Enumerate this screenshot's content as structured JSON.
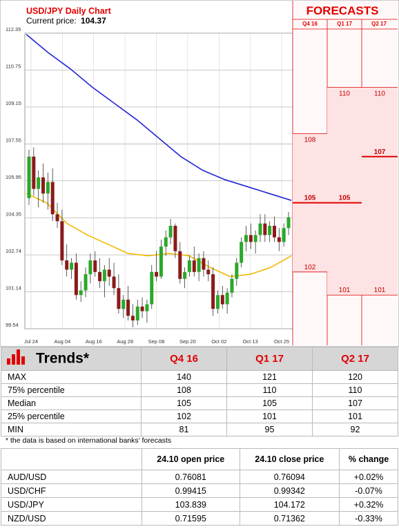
{
  "chart": {
    "title": "USD/JPY Daily Chart",
    "price_label": "Current price:",
    "price_value": "104.37"
  },
  "forecast_panel": {
    "title": "FORECASTS",
    "columns": [
      "Q4 16",
      "Q1 17",
      "Q2 17"
    ]
  },
  "chart_data": {
    "type": "candlestick",
    "title": "USD/JPY Daily Chart",
    "y_ticks": [
      "112.35",
      "110.75",
      "109.15",
      "107.55",
      "105.95",
      "104.35",
      "102.74",
      "101.14",
      "99.54"
    ],
    "ylim": [
      99.54,
      112.35
    ],
    "x_ticks": [
      "Jul 24",
      "Aug 04",
      "Aug 16",
      "Aug 28",
      "Sep 08",
      "Sep 20",
      "Oct 02",
      "Oct 13",
      "Oct 25"
    ],
    "grid": true,
    "candles": [
      [
        105.2,
        107.3,
        104.9,
        107.0
      ],
      [
        107.0,
        107.4,
        105.3,
        105.6
      ],
      [
        105.6,
        106.4,
        104.8,
        106.1
      ],
      [
        106.1,
        106.7,
        105.0,
        105.4
      ],
      [
        105.4,
        106.3,
        104.7,
        105.9
      ],
      [
        105.9,
        106.5,
        104.2,
        104.5
      ],
      [
        104.5,
        105.0,
        103.9,
        104.2
      ],
      [
        104.2,
        104.7,
        102.3,
        102.5
      ],
      [
        102.5,
        103.2,
        101.8,
        102.1
      ],
      [
        102.1,
        102.6,
        101.7,
        102.4
      ],
      [
        102.4,
        102.8,
        100.8,
        101.0
      ],
      [
        101.0,
        101.6,
        100.7,
        101.2
      ],
      [
        101.2,
        102.2,
        100.9,
        101.9
      ],
      [
        101.9,
        102.8,
        101.5,
        102.5
      ],
      [
        102.5,
        102.9,
        101.8,
        102.0
      ],
      [
        102.0,
        102.6,
        101.3,
        101.6
      ],
      [
        101.6,
        102.3,
        100.9,
        102.1
      ],
      [
        102.1,
        102.6,
        101.4,
        101.8
      ],
      [
        101.8,
        102.4,
        101.0,
        101.3
      ],
      [
        101.3,
        101.9,
        100.2,
        100.4
      ],
      [
        100.4,
        101.0,
        100.0,
        100.8
      ],
      [
        100.8,
        101.4,
        99.9,
        100.1
      ],
      [
        100.1,
        100.6,
        99.6,
        99.9
      ],
      [
        99.9,
        100.8,
        99.7,
        100.5
      ],
      [
        100.5,
        100.9,
        100.0,
        100.3
      ],
      [
        100.3,
        100.8,
        99.8,
        100.6
      ],
      [
        100.6,
        102.3,
        100.4,
        102.0
      ],
      [
        102.0,
        102.9,
        101.6,
        101.8
      ],
      [
        101.8,
        103.4,
        101.7,
        103.1
      ],
      [
        103.1,
        103.8,
        102.7,
        103.5
      ],
      [
        103.5,
        104.3,
        103.2,
        104.0
      ],
      [
        104.0,
        104.1,
        102.6,
        102.9
      ],
      [
        102.9,
        103.3,
        101.5,
        101.7
      ],
      [
        101.7,
        102.2,
        101.3,
        102.0
      ],
      [
        102.0,
        102.7,
        101.8,
        102.5
      ],
      [
        102.5,
        103.1,
        101.8,
        102.0
      ],
      [
        102.0,
        102.8,
        101.6,
        102.6
      ],
      [
        102.6,
        102.9,
        101.8,
        102.1
      ],
      [
        102.1,
        102.5,
        101.6,
        101.9
      ],
      [
        101.9,
        102.2,
        100.1,
        100.4
      ],
      [
        100.4,
        101.2,
        100.2,
        101.0
      ],
      [
        101.0,
        101.4,
        100.4,
        100.6
      ],
      [
        100.6,
        101.3,
        100.2,
        101.1
      ],
      [
        101.1,
        101.9,
        100.9,
        101.7
      ],
      [
        101.7,
        102.6,
        101.4,
        102.4
      ],
      [
        102.4,
        103.5,
        102.2,
        103.3
      ],
      [
        103.3,
        104.0,
        102.9,
        103.6
      ],
      [
        103.6,
        104.1,
        103.0,
        103.3
      ],
      [
        103.3,
        103.8,
        102.8,
        103.6
      ],
      [
        103.6,
        104.5,
        103.3,
        104.1
      ],
      [
        104.1,
        104.5,
        103.3,
        103.6
      ],
      [
        103.6,
        104.2,
        103.3,
        104.0
      ],
      [
        104.0,
        104.4,
        103.3,
        103.5
      ],
      [
        103.5,
        103.9,
        102.9,
        103.3
      ],
      [
        103.3,
        104.1,
        103.1,
        103.9
      ],
      [
        103.9,
        104.6,
        103.6,
        104.37
      ]
    ],
    "ma_long": [
      112.3,
      111.5,
      110.8,
      110.0,
      109.3,
      108.6,
      107.8,
      107.0,
      106.4,
      106.0,
      105.7,
      105.4,
      105.1
    ],
    "ma_short": [
      105.4,
      105.0,
      104.1,
      103.6,
      103.2,
      102.8,
      102.7,
      102.8,
      102.7,
      102.2,
      101.8,
      101.9,
      102.2,
      102.7
    ]
  },
  "forecasts": {
    "q4_16": {
      "high": "108",
      "median": "105",
      "low": "102"
    },
    "q1_17": {
      "high": "110",
      "median": "105",
      "low": "101"
    },
    "q2_17": {
      "high": "110",
      "median": "107",
      "low": "101"
    }
  },
  "trends": {
    "title": "Trends*",
    "columns": [
      "Q4 16",
      "Q1 17",
      "Q2 17"
    ],
    "rows": [
      {
        "label": "MAX",
        "values": [
          "140",
          "121",
          "120"
        ]
      },
      {
        "label": "75% percentile",
        "values": [
          "108",
          "110",
          "110"
        ]
      },
      {
        "label": "Median",
        "values": [
          "105",
          "105",
          "107"
        ]
      },
      {
        "label": "25% percentile",
        "values": [
          "102",
          "101",
          "101"
        ]
      },
      {
        "label": "MIN",
        "values": [
          "81",
          "95",
          "92"
        ]
      }
    ],
    "note": "* the data is based on international banks’ forecasts"
  },
  "fx_table": {
    "headers": [
      "24.10 open price",
      "24.10 close price",
      "% change"
    ],
    "rows": [
      {
        "pair": "AUD/USD",
        "open": "0.76081",
        "close": "0.76094",
        "change": "+0.02%",
        "dir": "pos"
      },
      {
        "pair": "USD/CHF",
        "open": "0.99415",
        "close": "0.99342",
        "change": "-0.07%",
        "dir": "neg"
      },
      {
        "pair": "USD/JPY",
        "open": "103.839",
        "close": "104.172",
        "change": "+0.32%",
        "dir": "pos"
      },
      {
        "pair": "NZD/USD",
        "open": "0.71595",
        "close": "0.71362",
        "change": "-0.33%",
        "dir": "neg"
      }
    ]
  },
  "colors": {
    "up": "#2aa82a",
    "down": "#8b1a1a",
    "ma_long": "#2323d6",
    "ma_short": "#f0b800",
    "accent": "#e10000"
  }
}
